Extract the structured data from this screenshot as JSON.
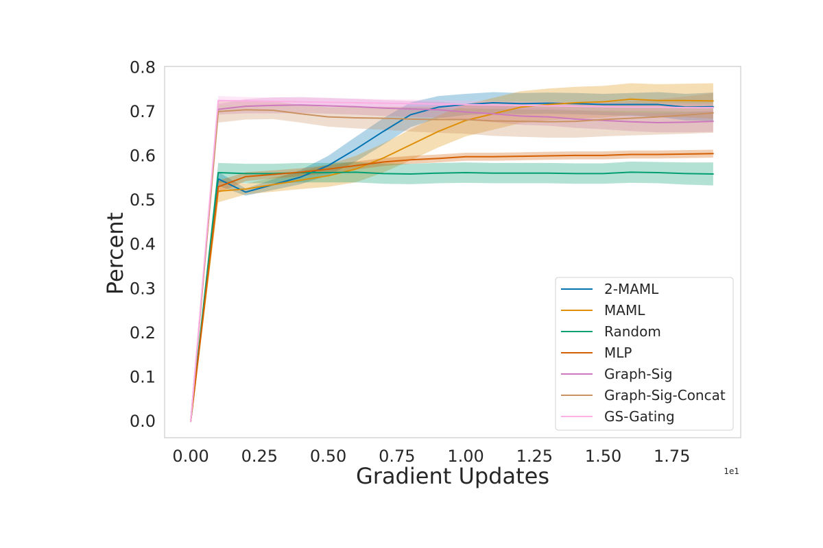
{
  "chart_data": {
    "type": "line",
    "title": "",
    "xlabel": "Gradient Updates",
    "ylabel": "Percent",
    "x_offset_label": "1e1",
    "xlim": [
      -0.095,
      2.0
    ],
    "ylim": [
      -0.037,
      0.802
    ],
    "x_ticks": [
      0.0,
      0.25,
      0.5,
      0.75,
      1.0,
      1.25,
      1.5,
      1.75
    ],
    "x_tick_labels": [
      "0.00",
      "0.25",
      "0.50",
      "0.75",
      "1.00",
      "1.25",
      "1.50",
      "1.75"
    ],
    "y_ticks": [
      0.0,
      0.1,
      0.2,
      0.3,
      0.4,
      0.5,
      0.6,
      0.7,
      0.8
    ],
    "y_tick_labels": [
      "0.0",
      "0.1",
      "0.2",
      "0.3",
      "0.4",
      "0.5",
      "0.6",
      "0.7",
      "0.8"
    ],
    "grid": false,
    "legend_position": "lower-right",
    "x": [
      0.0,
      0.1,
      0.2,
      0.3,
      0.4,
      0.5,
      0.6,
      0.7,
      0.8,
      0.9,
      1.0,
      1.1,
      1.2,
      1.3,
      1.4,
      1.5,
      1.6,
      1.7,
      1.8,
      1.9
    ],
    "series": [
      {
        "name": "2-MAML",
        "color": "#0173b2",
        "values": [
          0.0,
          0.548,
          0.518,
          0.535,
          0.552,
          0.578,
          0.615,
          0.655,
          0.693,
          0.71,
          0.716,
          0.72,
          0.718,
          0.719,
          0.718,
          0.716,
          0.716,
          0.716,
          0.71,
          0.711
        ],
        "band": [
          0.004,
          0.016,
          0.008,
          0.012,
          0.016,
          0.022,
          0.028,
          0.03,
          0.028,
          0.025,
          0.024,
          0.024,
          0.024,
          0.024,
          0.024,
          0.024,
          0.026,
          0.028,
          0.03,
          0.032
        ]
      },
      {
        "name": "MAML",
        "color": "#de8f05",
        "values": [
          0.0,
          0.52,
          0.525,
          0.535,
          0.545,
          0.555,
          0.57,
          0.595,
          0.625,
          0.655,
          0.68,
          0.695,
          0.71,
          0.716,
          0.72,
          0.722,
          0.728,
          0.725,
          0.725,
          0.724
        ],
        "band": [
          0.004,
          0.025,
          0.012,
          0.016,
          0.02,
          0.025,
          0.03,
          0.033,
          0.035,
          0.036,
          0.036,
          0.036,
          0.036,
          0.036,
          0.036,
          0.036,
          0.036,
          0.037,
          0.038,
          0.04
        ]
      },
      {
        "name": "Random",
        "color": "#029e73",
        "values": [
          0.0,
          0.562,
          0.56,
          0.56,
          0.562,
          0.562,
          0.563,
          0.56,
          0.559,
          0.561,
          0.562,
          0.561,
          0.561,
          0.561,
          0.56,
          0.56,
          0.563,
          0.562,
          0.56,
          0.559
        ],
        "band": [
          0.004,
          0.022,
          0.022,
          0.022,
          0.022,
          0.022,
          0.023,
          0.023,
          0.023,
          0.023,
          0.023,
          0.023,
          0.023,
          0.023,
          0.023,
          0.023,
          0.024,
          0.024,
          0.025,
          0.026
        ]
      },
      {
        "name": "MLP",
        "color": "#d55e00",
        "values": [
          0.0,
          0.53,
          0.553,
          0.558,
          0.563,
          0.57,
          0.578,
          0.586,
          0.591,
          0.594,
          0.598,
          0.598,
          0.599,
          0.6,
          0.601,
          0.601,
          0.603,
          0.603,
          0.604,
          0.605
        ],
        "band": [
          0.004,
          0.014,
          0.01,
          0.009,
          0.009,
          0.009,
          0.009,
          0.009,
          0.009,
          0.009,
          0.009,
          0.009,
          0.009,
          0.009,
          0.009,
          0.009,
          0.009,
          0.009,
          0.009,
          0.009
        ]
      },
      {
        "name": "Graph-Sig",
        "color": "#cc78bc",
        "values": [
          0.0,
          0.705,
          0.712,
          0.714,
          0.715,
          0.713,
          0.711,
          0.708,
          0.706,
          0.704,
          0.699,
          0.695,
          0.69,
          0.688,
          0.683,
          0.68,
          0.677,
          0.675,
          0.676,
          0.678
        ],
        "band": [
          0.004,
          0.012,
          0.016,
          0.018,
          0.018,
          0.018,
          0.018,
          0.018,
          0.018,
          0.018,
          0.018,
          0.019,
          0.02,
          0.02,
          0.02,
          0.02,
          0.021,
          0.022,
          0.023,
          0.024
        ]
      },
      {
        "name": "Graph-Sig-Concat",
        "color": "#ca9161",
        "values": [
          0.0,
          0.7,
          0.704,
          0.703,
          0.695,
          0.688,
          0.686,
          0.685,
          0.683,
          0.682,
          0.682,
          0.679,
          0.678,
          0.677,
          0.678,
          0.682,
          0.685,
          0.688,
          0.692,
          0.697
        ],
        "band": [
          0.004,
          0.025,
          0.022,
          0.02,
          0.02,
          0.022,
          0.024,
          0.026,
          0.028,
          0.03,
          0.032,
          0.034,
          0.035,
          0.036,
          0.037,
          0.038,
          0.039,
          0.04,
          0.042,
          0.045
        ]
      },
      {
        "name": "GS-Gating",
        "color": "#fbafe4",
        "values": [
          0.0,
          0.725,
          0.724,
          0.723,
          0.722,
          0.721,
          0.72,
          0.719,
          0.718,
          0.717,
          0.716,
          0.715,
          0.714,
          0.713,
          0.712,
          0.711,
          0.71,
          0.71,
          0.709,
          0.709
        ],
        "band": [
          0.004,
          0.01,
          0.009,
          0.009,
          0.009,
          0.009,
          0.009,
          0.009,
          0.009,
          0.009,
          0.009,
          0.009,
          0.009,
          0.009,
          0.009,
          0.009,
          0.009,
          0.009,
          0.009,
          0.009
        ]
      }
    ]
  }
}
